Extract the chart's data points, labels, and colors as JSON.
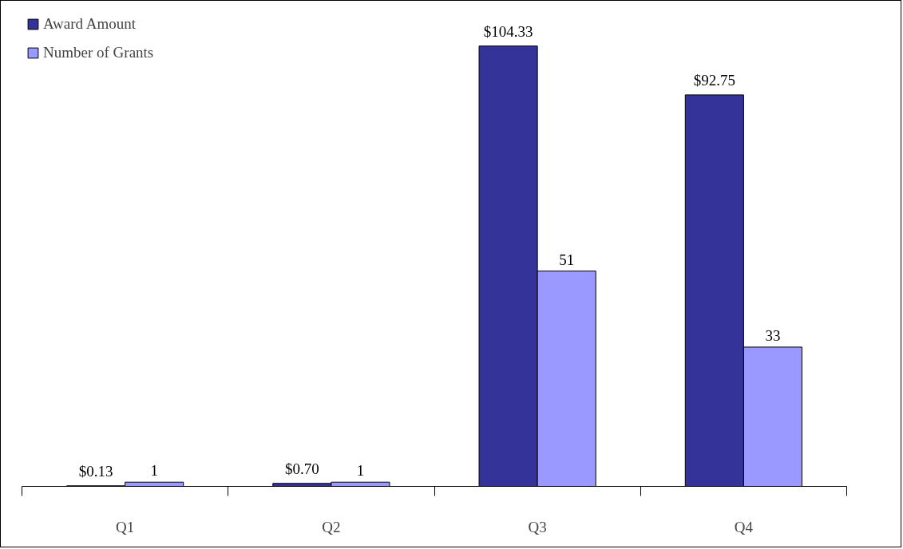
{
  "chart_data": {
    "type": "bar",
    "categories": [
      "Q1",
      "Q2",
      "Q3",
      "Q4"
    ],
    "series": [
      {
        "name": "Award Amount",
        "color": "#333399",
        "values": [
          0.13,
          0.7,
          104.33,
          92.75
        ],
        "value_labels": [
          "$0.13",
          "$0.70",
          "$104.33",
          "$92.75"
        ]
      },
      {
        "name": "Number of Grants",
        "color": "#9999ff",
        "values": [
          1,
          1,
          51,
          33
        ],
        "value_labels": [
          "1",
          "1",
          "51",
          "33"
        ]
      }
    ],
    "legend": "top left",
    "grid": false
  }
}
